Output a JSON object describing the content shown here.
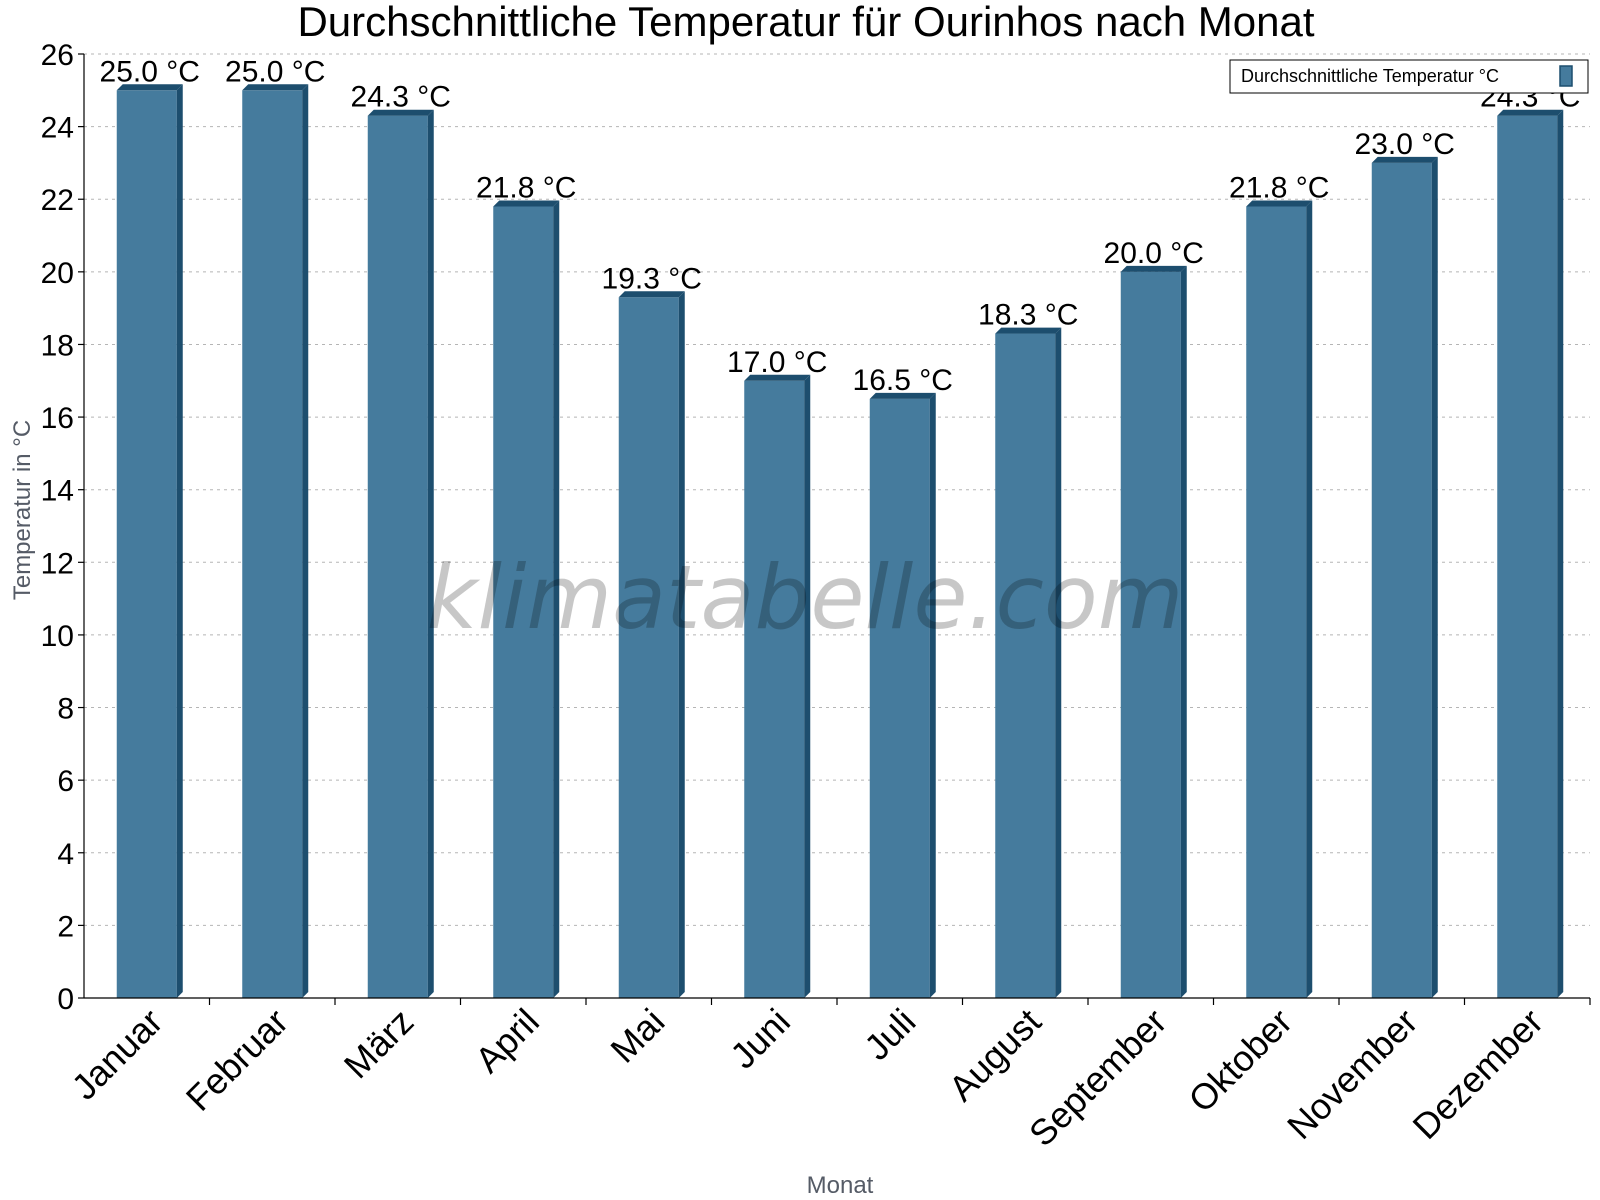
{
  "chart_data": {
    "type": "bar",
    "title": "Durchschnittliche Temperatur für Ourinhos nach Monat",
    "xlabel": "Monat",
    "ylabel": "Temperatur in °C",
    "categories": [
      "Januar",
      "Februar",
      "März",
      "April",
      "Mai",
      "Juni",
      "Juli",
      "August",
      "September",
      "Oktober",
      "November",
      "Dezember"
    ],
    "series": [
      {
        "name": "Durchschnittliche Temperatur °C",
        "values": [
          25.0,
          25.0,
          24.3,
          21.8,
          19.3,
          17.0,
          16.5,
          18.3,
          20.0,
          21.8,
          23.0,
          24.3
        ],
        "labels": [
          "25.0 °C",
          "25.0 °C",
          "24.3 °C",
          "21.8 °C",
          "19.3 °C",
          "17.0 °C",
          "16.5 °C",
          "18.3 °C",
          "20.0 °C",
          "21.8 °C",
          "23.0 °C",
          "24.3 °C"
        ]
      }
    ],
    "ylim": [
      0,
      26
    ],
    "yticks": [
      0,
      2,
      4,
      6,
      8,
      10,
      12,
      14,
      16,
      18,
      20,
      22,
      24,
      26
    ],
    "grid": true,
    "legend_position": "top-right",
    "colors": {
      "bar": "#457b9d",
      "bar_side": "#1d4e6e",
      "bar_top": "#1d4e6e",
      "grid": "#b5b5b5"
    }
  },
  "watermark": "klimatabelle.com"
}
